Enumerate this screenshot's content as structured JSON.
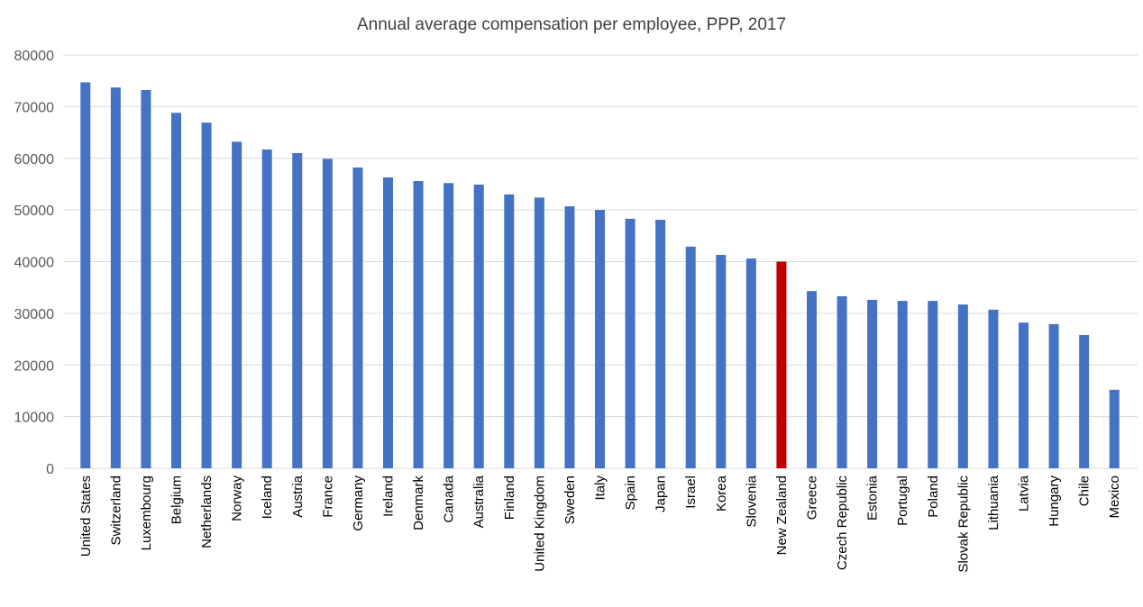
{
  "chart_data": {
    "type": "bar",
    "title": "Annual average compensation per employee,  PPP, 2017",
    "xlabel": "",
    "ylabel": "",
    "ylim": [
      0,
      80000
    ],
    "yticks": [
      0,
      10000,
      20000,
      30000,
      40000,
      50000,
      60000,
      70000,
      80000
    ],
    "grid": true,
    "colors": {
      "default": "#4472C4",
      "highlight": "#C00000",
      "grid": "#D9D9D9"
    },
    "highlight": "New Zealand",
    "categories": [
      "United States",
      "Switzerland",
      "Luxembourg",
      "Belgium",
      "Netherlands",
      "Norway",
      "Iceland",
      "Austria",
      "France",
      "Germany",
      "Ireland",
      "Denmark",
      "Canada",
      "Australia",
      "Finland",
      "United Kingdom",
      "Sweden",
      "Italy",
      "Spain",
      "Japan",
      "Israel",
      "Korea",
      "Slovenia",
      "New Zealand",
      "Greece",
      "Czech Republic",
      "Estonia",
      "Portugal",
      "Poland",
      "Slovak Republic",
      "Lithuania",
      "Latvia",
      "Hungary",
      "Chile",
      "Mexico"
    ],
    "values": [
      74700,
      73700,
      73200,
      68800,
      66900,
      63200,
      61700,
      61000,
      59900,
      58200,
      56300,
      55600,
      55200,
      54900,
      53000,
      52400,
      50700,
      50000,
      48300,
      48100,
      42900,
      41300,
      40600,
      40000,
      34300,
      33300,
      32600,
      32400,
      32400,
      31700,
      30700,
      28200,
      27900,
      25800,
      15200
    ]
  }
}
